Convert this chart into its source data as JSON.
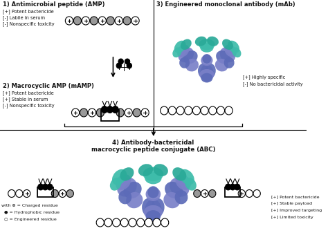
{
  "section1_title": "1) Antimicrobial peptide (AMP)",
  "section1_bullets": [
    "[+] Potent bactericide",
    "[-] Labile in serum",
    "[-] Nonspecific toxicity"
  ],
  "section2_title": "2) Macrocyclic AMP (mAMP)",
  "section2_bullets": [
    "[+] Potent bactericide",
    "[+] Stable in serum",
    "[-] Nonspecific toxicity"
  ],
  "section3_title": "3) Engineered monoclonal antibody (mAb)",
  "section3_bullets": [
    "[+] Highly specific",
    "[-] No bactericidal activity"
  ],
  "section4_title": "4) Antibody-bactericidal\nmacrocyclic peptide conjugate (ABC)",
  "section4_bullets": [
    "[+] Potent bactericide",
    "[+] Stable payload",
    "[+] Improved targeting",
    "[+] Limited toxicity"
  ],
  "legend_items": [
    "with ⊕ = Charged residue",
    "● = Hydrophobic residue",
    "○ = Engineered residue"
  ],
  "bg_color": "#f5f5f5",
  "text_color": "#111111",
  "gray_color": "#999999",
  "antibody_blue": "#7a80c8",
  "antibody_teal": "#3dbcaa",
  "antibody_blue2": "#5c6bb8",
  "antibody_teal2": "#2aaa98"
}
